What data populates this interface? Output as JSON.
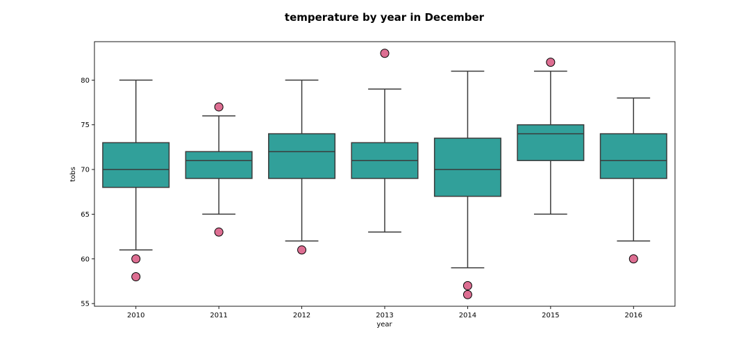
{
  "chart_data": {
    "type": "box",
    "title": "temperature by year in December",
    "xlabel": "year",
    "ylabel": "tobs",
    "ylim": [
      54.7,
      84.3
    ],
    "yticks": [
      55,
      60,
      65,
      70,
      75,
      80
    ],
    "grid": false,
    "legend": "none",
    "box_color": "#31a09a",
    "outlier_color": "#dd6e92",
    "line_color": "#3a3a3a",
    "categories": [
      "2010",
      "2011",
      "2012",
      "2013",
      "2014",
      "2015",
      "2016"
    ],
    "boxes": [
      {
        "category": "2010",
        "whisker_low": 61,
        "q1": 68,
        "median": 70,
        "q3": 73,
        "whisker_high": 80,
        "outliers": [
          60,
          58
        ]
      },
      {
        "category": "2011",
        "whisker_low": 65,
        "q1": 69,
        "median": 71,
        "q3": 72,
        "whisker_high": 76,
        "outliers": [
          77,
          63
        ]
      },
      {
        "category": "2012",
        "whisker_low": 62,
        "q1": 69,
        "median": 72,
        "q3": 74,
        "whisker_high": 80,
        "outliers": [
          61
        ]
      },
      {
        "category": "2013",
        "whisker_low": 63,
        "q1": 69,
        "median": 71,
        "q3": 73,
        "whisker_high": 79,
        "outliers": [
          83
        ]
      },
      {
        "category": "2014",
        "whisker_low": 59,
        "q1": 67,
        "median": 70,
        "q3": 73.5,
        "whisker_high": 81,
        "outliers": [
          57,
          56
        ]
      },
      {
        "category": "2015",
        "whisker_low": 65,
        "q1": 71,
        "median": 74,
        "q3": 75,
        "whisker_high": 81,
        "outliers": [
          82
        ]
      },
      {
        "category": "2016",
        "whisker_low": 62,
        "q1": 69,
        "median": 71,
        "q3": 74,
        "whisker_high": 78,
        "outliers": [
          60
        ]
      }
    ]
  }
}
